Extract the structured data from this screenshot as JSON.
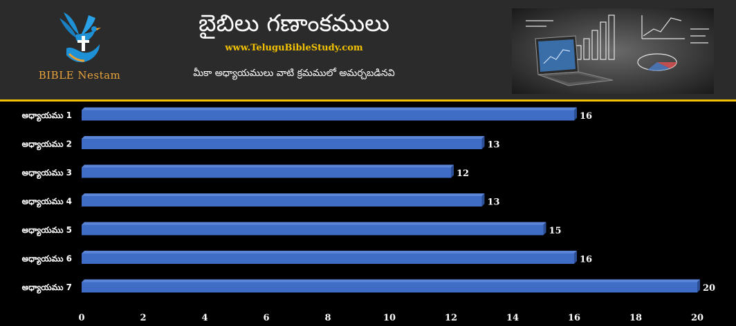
{
  "header": {
    "title": "బైబిలు గణాంకములు",
    "website": "www.TeluguBibleStudy.com",
    "subtitle": "మీకా అధ్యాయములు వాటి క్రమములో అమర్చబడినవి",
    "logo_name": "BIBLE Nestam",
    "logo_icon": "dove-cross-hand-icon",
    "image_icon": "laptop-charts-icon"
  },
  "colors": {
    "header_bg": "#2b2b2b",
    "page_bg": "#000000",
    "accent_gold": "#f2c200",
    "bar": "#3f6cc4",
    "bar_edge": "#5b86d8",
    "logo_blue": "#1e90d6",
    "logo_text": "#e8a33a"
  },
  "chart_data": {
    "type": "bar",
    "orientation": "horizontal",
    "categories": [
      "అధ్యాయము 1",
      "అధ్యాయము 2",
      "అధ్యాయము 3",
      "అధ్యాయము 4",
      "అధ్యాయము 5",
      "అధ్యాయము 6",
      "అధ్యాయము 7"
    ],
    "values": [
      16,
      13,
      12,
      13,
      15,
      16,
      20
    ],
    "xlim": [
      0,
      20
    ],
    "xticks": [
      0,
      2,
      4,
      6,
      8,
      10,
      12,
      14,
      16,
      18,
      20
    ],
    "grid": false,
    "data_labels": true
  }
}
